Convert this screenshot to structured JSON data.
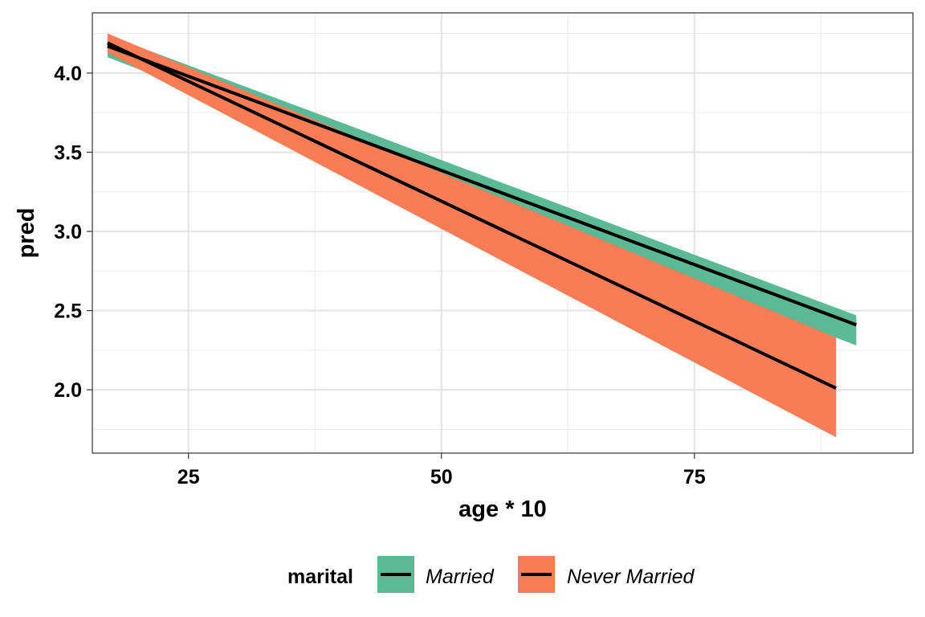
{
  "chart_data": {
    "type": "line",
    "xlabel": "age * 10",
    "ylabel": "pred",
    "xlim": [
      15.5,
      96.6
    ],
    "ylim": [
      1.6,
      4.38
    ],
    "x_ticks": [
      25,
      50,
      75
    ],
    "y_ticks": [
      2.0,
      2.5,
      3.0,
      3.5,
      4.0
    ],
    "x_tick_labels": [
      "25",
      "50",
      "75"
    ],
    "y_tick_labels": [
      "2.0",
      "2.5",
      "3.0",
      "3.5",
      "4.0"
    ],
    "grid": true,
    "legend": {
      "title": "marital",
      "position": "bottom",
      "entries": [
        "Married",
        "Never Married"
      ]
    },
    "series": [
      {
        "name": "Married",
        "color": "#5cb995",
        "x": [
          17,
          91
        ],
        "y": [
          4.17,
          2.41
        ],
        "lower": [
          4.1,
          2.28
        ],
        "upper": [
          4.24,
          2.47
        ]
      },
      {
        "name": "Never Married",
        "color": "#f87d56",
        "x": [
          17,
          89
        ],
        "y": [
          4.19,
          2.01
        ],
        "lower": [
          4.13,
          1.7
        ],
        "upper": [
          4.25,
          2.33
        ]
      }
    ],
    "line_color": "#000000"
  }
}
